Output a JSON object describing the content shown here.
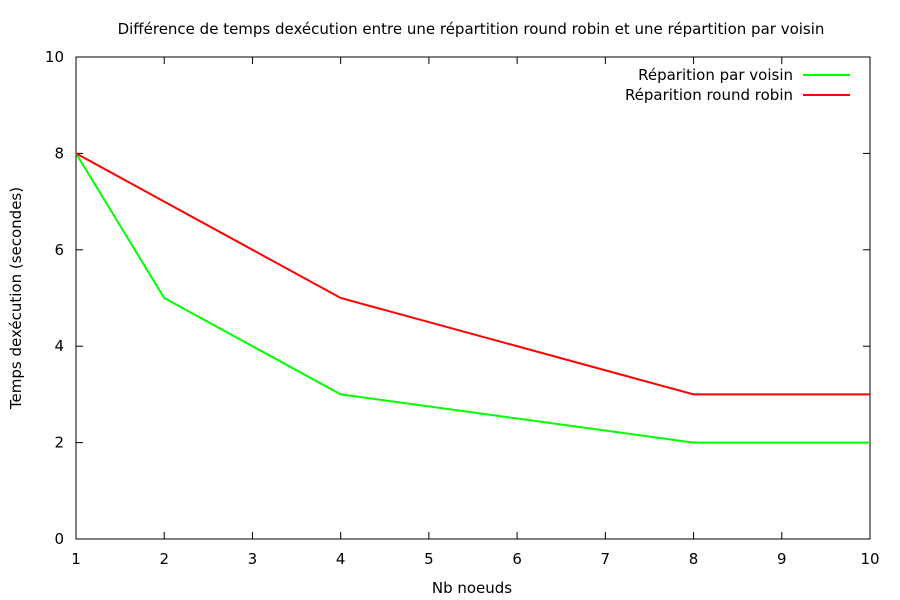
{
  "chart_data": {
    "type": "line",
    "title": "Différence de temps dexécution entre une répartition round robin et une répartition par voisin",
    "xlabel": "Nb noeuds",
    "ylabel": "Temps dexécution (secondes)",
    "xlim": [
      1,
      10
    ],
    "ylim": [
      0,
      10
    ],
    "xticks": [
      1,
      2,
      3,
      4,
      5,
      6,
      7,
      8,
      9,
      10
    ],
    "yticks": [
      0,
      2,
      4,
      6,
      8,
      10
    ],
    "grid": false,
    "legend_position": "top-right",
    "series": [
      {
        "name": "Réparition par voisin",
        "color": "#00ff00",
        "x": [
          1,
          2,
          4,
          8,
          10
        ],
        "y": [
          8,
          5,
          3,
          2,
          2
        ]
      },
      {
        "name": "Réparition round robin",
        "color": "#ff0000",
        "x": [
          1,
          2,
          4,
          8,
          10
        ],
        "y": [
          8,
          7,
          5,
          3,
          3
        ]
      }
    ]
  }
}
